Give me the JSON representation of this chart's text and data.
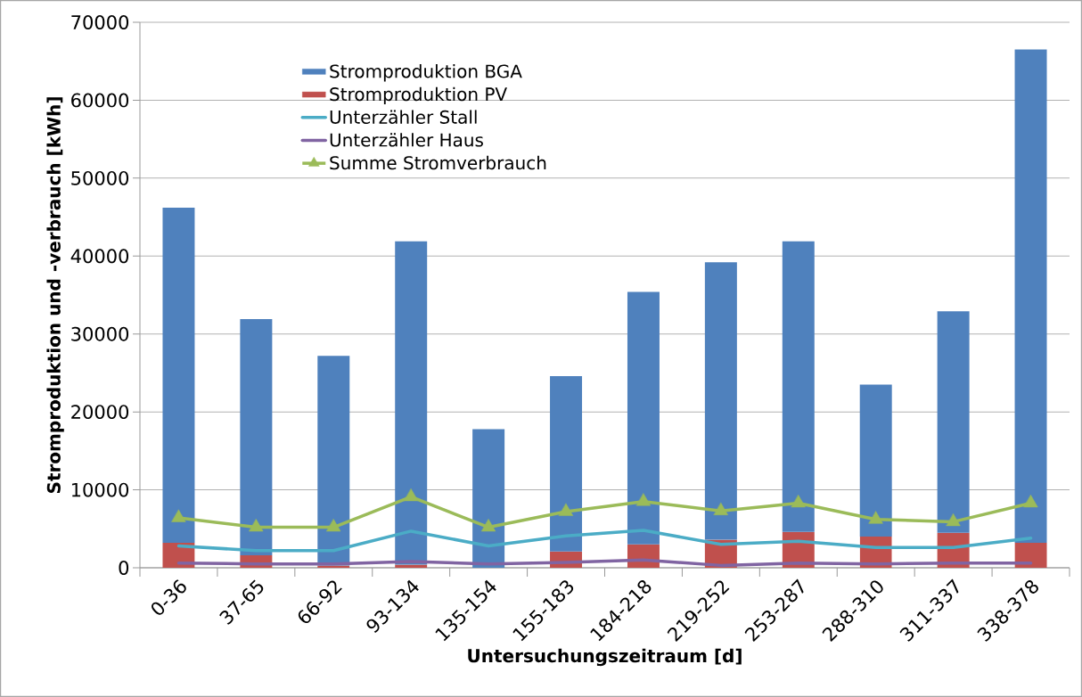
{
  "chart_data": {
    "type": "bar",
    "stacked": true,
    "xlabel": "Untersuchungszeitraum [d]",
    "ylabel": "Stromproduktion und -verbrauch [kWh]",
    "categories": [
      "0-36",
      "37-65",
      "66-92",
      "93-134",
      "135-154",
      "155-183",
      "184-218",
      "219-252",
      "253-287",
      "288-310",
      "311-337",
      "338-378"
    ],
    "series": [
      {
        "name": "Stromproduktion PV",
        "color": "#c0504d",
        "values": [
          3200,
          1600,
          300,
          400,
          0,
          2100,
          3000,
          3600,
          4600,
          4000,
          4500,
          3200
        ]
      },
      {
        "name": "Stromproduktion BGA",
        "color": "#4f81bd",
        "values": [
          43000,
          30300,
          26900,
          41500,
          17800,
          22500,
          32400,
          35600,
          37300,
          19500,
          28400,
          63300
        ]
      },
      {
        "name": "Unterzähler Stall",
        "type": "line",
        "color": "#4bacc6",
        "values": [
          2800,
          2200,
          2200,
          4700,
          2800,
          4100,
          4800,
          3000,
          3400,
          2600,
          2600,
          3800
        ]
      },
      {
        "name": "Unterzähler Haus",
        "type": "line",
        "color": "#8064a2",
        "values": [
          600,
          500,
          500,
          800,
          500,
          700,
          1000,
          300,
          600,
          500,
          600,
          600
        ]
      },
      {
        "name": "Summe Stromverbrauch",
        "type": "line",
        "color": "#9bbb59",
        "marker": "triangle",
        "values": [
          6400,
          5200,
          5200,
          9100,
          5200,
          7200,
          8500,
          7300,
          8300,
          6200,
          5900,
          8300
        ]
      }
    ],
    "ylim": [
      0,
      70000
    ],
    "yticks": [
      0,
      10000,
      20000,
      30000,
      40000,
      50000,
      60000,
      70000
    ],
    "grid": "y",
    "legend": "top left"
  }
}
